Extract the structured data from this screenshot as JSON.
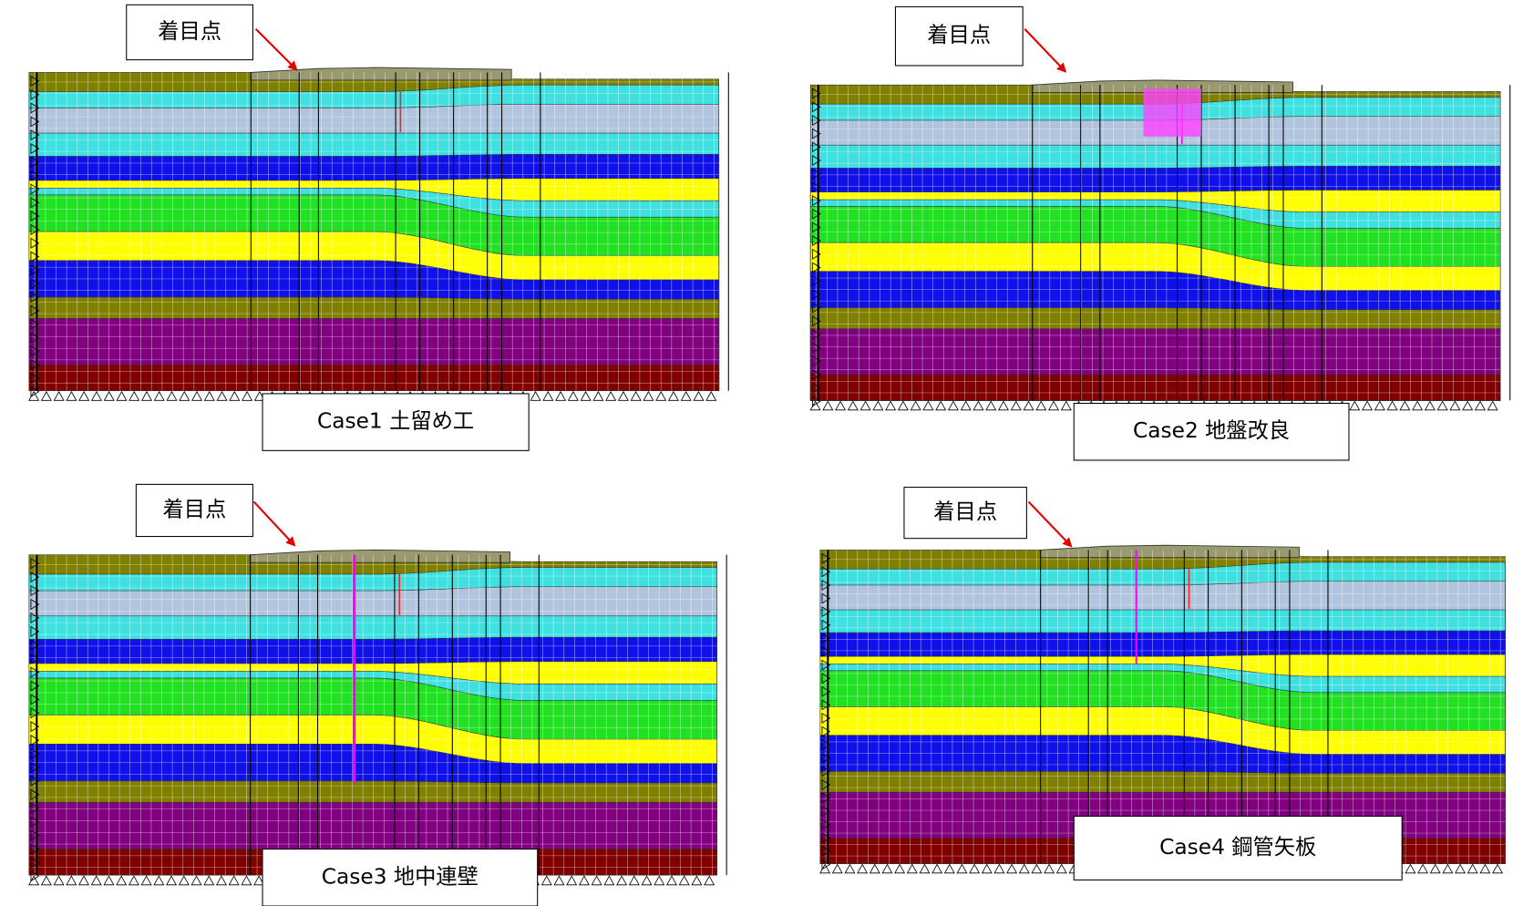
{
  "panels": [
    {
      "callout": "着目点",
      "caption": "Case1 土留め工"
    },
    {
      "callout": "着目点",
      "caption": "Case2 地盤改良"
    },
    {
      "callout": "着目点",
      "caption": "Case3 地中連壁"
    },
    {
      "callout": "着目点",
      "caption": "Case4 鋼管矢板"
    }
  ]
}
